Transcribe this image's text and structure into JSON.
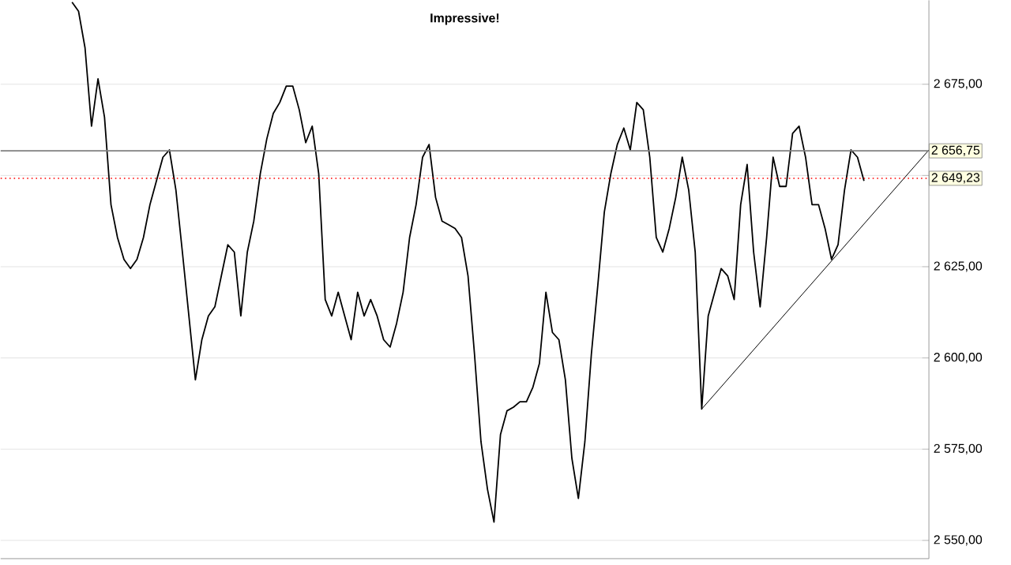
{
  "chart_data": {
    "type": "line",
    "annotations": [
      "Impressive!"
    ],
    "categories": [
      null,
      null,
      null,
      null,
      null,
      null,
      null,
      null,
      null,
      null,
      null,
      null,
      null,
      null,
      null,
      null,
      null,
      null,
      null,
      null,
      null,
      null,
      null,
      null,
      null,
      null,
      null,
      null,
      null,
      null,
      null,
      null,
      null,
      null,
      null,
      null,
      null,
      null,
      null,
      null,
      null,
      null,
      null,
      null,
      null,
      null,
      null,
      null,
      null,
      null,
      null,
      null,
      null,
      null,
      null,
      null,
      null,
      null,
      null,
      null,
      null,
      null,
      null,
      null,
      null,
      null,
      null,
      null,
      null,
      null,
      null,
      null,
      null,
      null,
      null,
      null,
      null,
      null,
      null,
      null,
      null,
      null,
      null,
      null,
      null,
      null,
      null,
      null,
      null,
      null,
      null,
      null,
      null,
      null,
      null,
      null,
      null,
      null,
      null,
      null,
      null,
      null,
      null,
      null,
      null,
      null,
      null,
      null,
      null,
      null,
      null,
      null,
      null,
      null,
      null,
      null,
      null,
      null,
      null,
      null,
      null,
      null,
      null,
      null,
      null,
      null,
      null,
      null,
      null,
      null,
      null,
      null,
      null,
      null,
      null,
      null,
      null,
      null,
      null,
      null,
      null,
      null,
      null,
      null
    ],
    "series": [
      {
        "color": "#000000",
        "values": [
          null,
          null,
          null,
          null,
          null,
          null,
          null,
          null,
          null,
          null,
          null,
          2697.5,
          2695,
          2685,
          2663.5,
          2676.5,
          2666,
          2642,
          2633,
          2627,
          2624.5,
          2627,
          2633,
          2642,
          2648.5,
          2655,
          2657,
          2646,
          2629,
          2611.5,
          2594,
          2605,
          2611.5,
          2614,
          2622.5,
          2631,
          2629,
          2611.5,
          2629,
          2637.5,
          2650.5,
          2660,
          2667,
          2670,
          2674.5,
          2674.5,
          2668,
          2659,
          2663.5,
          2650.5,
          2616,
          2611.5,
          2618,
          2611.5,
          2605,
          2618,
          2611.5,
          2616,
          2611.5,
          2605,
          2603,
          2609.5,
          2618,
          2633,
          2642,
          2655,
          2658.5,
          2644,
          2637.5,
          2636.5,
          2635.5,
          2633,
          2622.5,
          2601,
          2577,
          2564,
          2555,
          2579,
          2585.5,
          2586.5,
          2588,
          2588,
          2592,
          2598.5,
          2618,
          2607,
          2605,
          2594,
          2572.5,
          2561.5,
          2577,
          2601,
          2620,
          2640,
          2650.5,
          2658.5,
          2663,
          2657,
          2670,
          2668,
          2655,
          2633,
          2629,
          2635.5,
          2644,
          2655,
          2646,
          2629,
          2586,
          2611.5,
          2618,
          2624.5,
          2622.5,
          2616,
          2642,
          2653,
          2629,
          2614,
          2633,
          2655,
          2647,
          2647,
          2661.5,
          2663.5,
          2655,
          2642,
          2642,
          2635.5,
          2627,
          2631,
          2646,
          2657,
          2655,
          2648.5,
          null,
          null,
          null,
          null,
          null,
          null,
          null,
          null,
          null,
          null
        ]
      },
      {
        "color": "#000000",
        "values": [
          null,
          null,
          null,
          null,
          null,
          null,
          null,
          null,
          null,
          null,
          null,
          null,
          null,
          null,
          null,
          null,
          null,
          null,
          null,
          null,
          null,
          null,
          null,
          null,
          null,
          null,
          null,
          null,
          null,
          null,
          null,
          null,
          null,
          null,
          null,
          null,
          null,
          null,
          null,
          null,
          null,
          null,
          null,
          null,
          null,
          null,
          null,
          null,
          null,
          null,
          null,
          null,
          null,
          null,
          null,
          null,
          null,
          null,
          null,
          null,
          null,
          null,
          null,
          null,
          null,
          null,
          null,
          null,
          null,
          null,
          null,
          null,
          null,
          null,
          null,
          null,
          null,
          null,
          null,
          null,
          null,
          null,
          null,
          null,
          null,
          null,
          null,
          null,
          null,
          null,
          null,
          null,
          null,
          null,
          null,
          null,
          null,
          null,
          null,
          null,
          null,
          null,
          null,
          null,
          null,
          null,
          null,
          null,
          2586,
          null,
          null,
          null,
          null,
          null,
          null,
          null,
          null,
          null,
          null,
          null,
          null,
          null,
          null,
          null,
          null,
          null,
          null,
          null,
          null,
          null,
          null,
          null,
          null,
          null,
          null,
          null,
          null,
          null,
          null,
          null,
          null,
          null,
          null,
          2657
        ]
      }
    ],
    "ylim": [
      2545,
      2698
    ],
    "yticks": [
      {
        "value": 2550,
        "label": "2 550,00"
      },
      {
        "value": 2575,
        "label": "2 575,00"
      },
      {
        "value": 2600,
        "label": "2 600,00"
      },
      {
        "value": 2625,
        "label": "2 625,00"
      },
      {
        "value": 2650,
        "label": null
      },
      {
        "value": 2675,
        "label": "2 675,00"
      }
    ],
    "grid": "y",
    "ref_lines": [
      {
        "axis": "y",
        "value": 2656.75,
        "label": "2 656,75",
        "color": "#808080",
        "line_style": "solid"
      },
      {
        "axis": "y",
        "value": 2649.23,
        "label": "2 649,23",
        "color": "#ff0000",
        "line_style": "dotted"
      }
    ]
  }
}
